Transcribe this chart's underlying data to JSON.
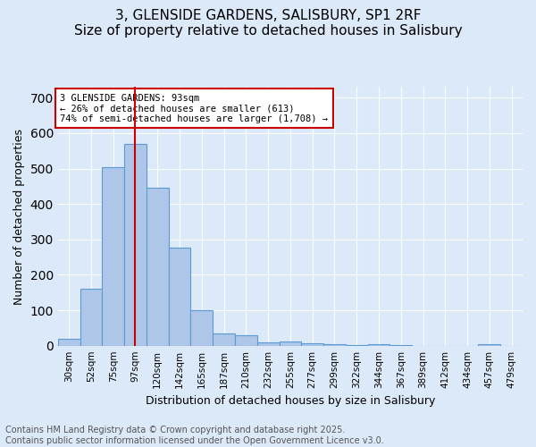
{
  "title_line1": "3, GLENSIDE GARDENS, SALISBURY, SP1 2RF",
  "title_line2": "Size of property relative to detached houses in Salisbury",
  "xlabel": "Distribution of detached houses by size in Salisbury",
  "ylabel": "Number of detached properties",
  "bins": [
    "30sqm",
    "52sqm",
    "75sqm",
    "97sqm",
    "120sqm",
    "142sqm",
    "165sqm",
    "187sqm",
    "210sqm",
    "232sqm",
    "255sqm",
    "277sqm",
    "299sqm",
    "322sqm",
    "344sqm",
    "367sqm",
    "389sqm",
    "412sqm",
    "434sqm",
    "457sqm",
    "479sqm"
  ],
  "bar_heights": [
    20,
    160,
    505,
    570,
    447,
    277,
    100,
    35,
    30,
    10,
    13,
    8,
    4,
    1,
    5,
    2,
    0,
    0,
    0,
    5,
    0
  ],
  "bar_color": "#aec6e8",
  "bar_edge_color": "#5b9bd5",
  "property_bin_index": 3,
  "annotation_text": "3 GLENSIDE GARDENS: 93sqm\n← 26% of detached houses are smaller (613)\n74% of semi-detached houses are larger (1,708) →",
  "annotation_box_color": "#ffffff",
  "annotation_box_edge_color": "#cc0000",
  "annotation_text_color": "#000000",
  "vline_color": "#cc0000",
  "footer_line1": "Contains HM Land Registry data © Crown copyright and database right 2025.",
  "footer_line2": "Contains public sector information licensed under the Open Government Licence v3.0.",
  "bg_color": "#dce9f8",
  "plot_bg_color": "#dce9f8",
  "grid_color": "#ffffff",
  "ylim": [
    0,
    730
  ],
  "title_fontsize": 11,
  "label_fontsize": 9,
  "tick_fontsize": 7.5,
  "footer_fontsize": 7
}
